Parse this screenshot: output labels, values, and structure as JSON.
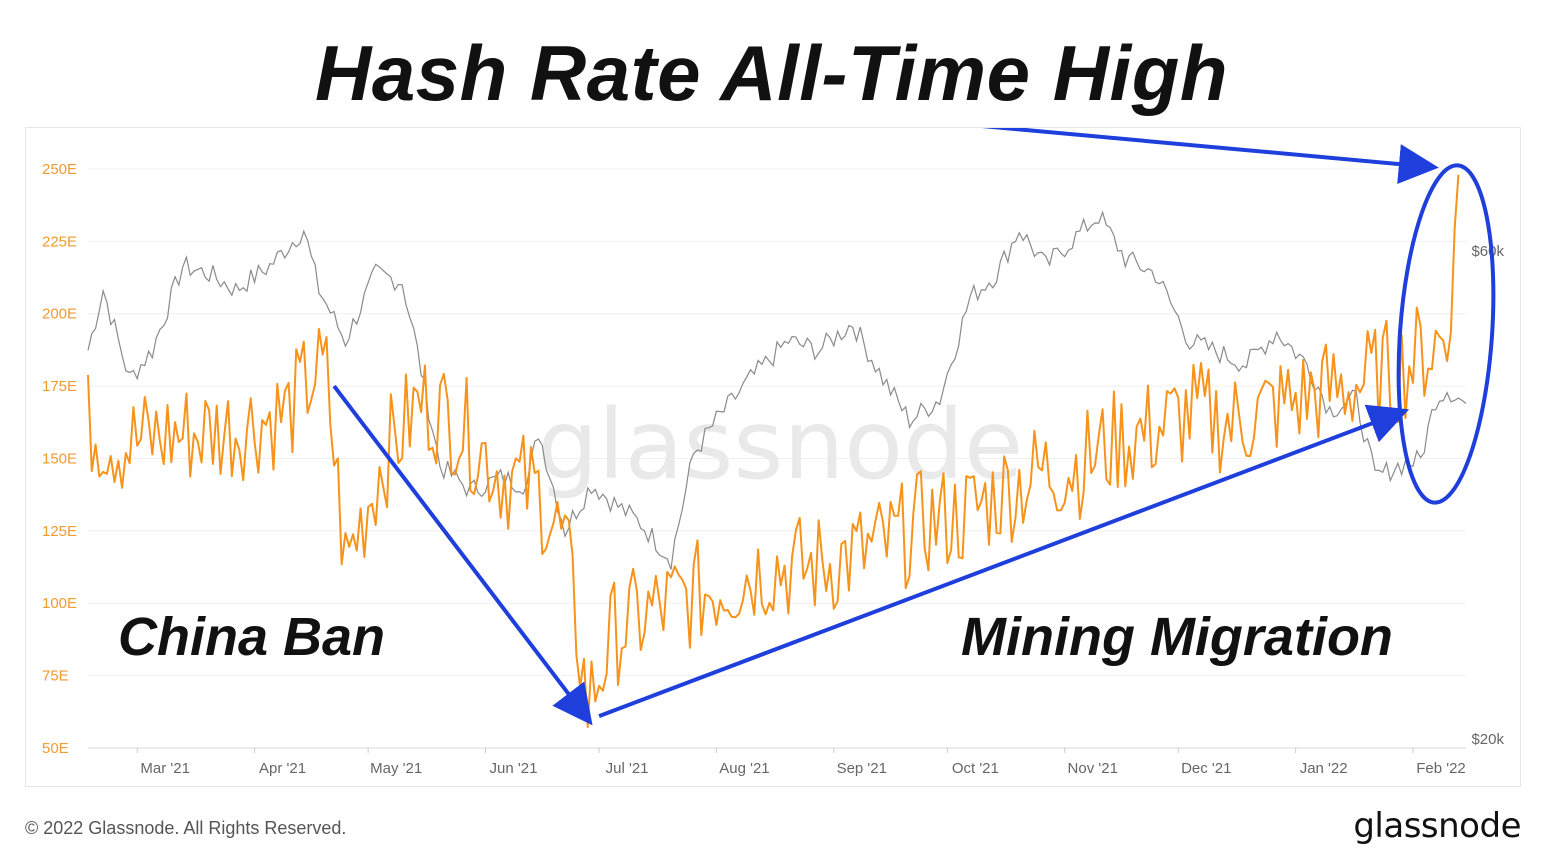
{
  "headline": "Hash Rate All-Time High",
  "footer": {
    "copyright": "© 2022 Glassnode. All Rights Reserved.",
    "brand": "glassnode"
  },
  "chart_data": {
    "type": "line",
    "watermark": "glassnode",
    "x_tick_labels": [
      "Mar '21",
      "Apr '21",
      "May '21",
      "Jun '21",
      "Jul '21",
      "Aug '21",
      "Sep '21",
      "Oct '21",
      "Nov '21",
      "Dec '21",
      "Jan '22",
      "Feb '22"
    ],
    "x_tick_dates": [
      "2021-03-01",
      "2021-04-01",
      "2021-05-01",
      "2021-06-01",
      "2021-07-01",
      "2021-08-01",
      "2021-09-01",
      "2021-10-01",
      "2021-11-01",
      "2021-12-01",
      "2022-01-01",
      "2022-02-01"
    ],
    "x_range": [
      "2021-02-16",
      "2022-02-15"
    ],
    "y_left": {
      "tick_labels": [
        "50E",
        "75E",
        "100E",
        "125E",
        "150E",
        "175E",
        "200E",
        "225E",
        "250E"
      ],
      "ticks": [
        50,
        75,
        100,
        125,
        150,
        175,
        200,
        225,
        250
      ],
      "range": [
        50,
        260
      ],
      "color": "#f09a30"
    },
    "y_right": {
      "tick_labels": [
        "$20k",
        "$60k"
      ],
      "ticks": [
        20000,
        60000
      ],
      "scale": "log",
      "range": [
        20000,
        60000
      ]
    },
    "grid": true,
    "series": [
      {
        "color": "#f7931a",
        "axis": "left",
        "dates": [
          "2021-02-16",
          "2021-02-25",
          "2021-03-10",
          "2021-03-25",
          "2021-04-10",
          "2021-04-17",
          "2021-04-20",
          "2021-04-25",
          "2021-05-05",
          "2021-05-15",
          "2021-05-25",
          "2021-06-05",
          "2021-06-15",
          "2021-06-22",
          "2021-06-28",
          "2021-07-05",
          "2021-07-15",
          "2021-07-25",
          "2021-08-05",
          "2021-08-15",
          "2021-08-25",
          "2021-09-05",
          "2021-09-15",
          "2021-09-25",
          "2021-10-05",
          "2021-10-15",
          "2021-10-25",
          "2021-11-05",
          "2021-11-15",
          "2021-11-25",
          "2021-12-05",
          "2021-12-15",
          "2021-12-25",
          "2022-01-05",
          "2022-01-15",
          "2022-01-22",
          "2022-01-30",
          "2022-02-05",
          "2022-02-10",
          "2022-02-13"
        ],
        "values": [
          162,
          155,
          158,
          160,
          166,
          180,
          178,
          113,
          150,
          170,
          162,
          145,
          138,
          120,
          65,
          90,
          97,
          102,
          108,
          113,
          112,
          116,
          120,
          128,
          130,
          138,
          145,
          148,
          156,
          160,
          166,
          162,
          167,
          172,
          175,
          178,
          182,
          188,
          192,
          248
        ]
      },
      {
        "color": "#8a8a8a",
        "axis": "right",
        "dates": [
          "2021-02-16",
          "2021-02-20",
          "2021-02-27",
          "2021-03-05",
          "2021-03-13",
          "2021-03-20",
          "2021-03-27",
          "2021-04-05",
          "2021-04-14",
          "2021-04-18",
          "2021-04-25",
          "2021-05-03",
          "2021-05-10",
          "2021-05-13",
          "2021-05-20",
          "2021-05-28",
          "2021-06-05",
          "2021-06-12",
          "2021-06-15",
          "2021-06-22",
          "2021-06-29",
          "2021-07-05",
          "2021-07-12",
          "2021-07-20",
          "2021-07-26",
          "2021-08-01",
          "2021-08-10",
          "2021-08-20",
          "2021-08-28",
          "2021-09-06",
          "2021-09-14",
          "2021-09-21",
          "2021-09-29",
          "2021-10-07",
          "2021-10-14",
          "2021-10-20",
          "2021-10-27",
          "2021-11-02",
          "2021-11-10",
          "2021-11-17",
          "2021-11-25",
          "2021-12-04",
          "2021-12-10",
          "2021-12-19",
          "2021-12-27",
          "2022-01-04",
          "2022-01-10",
          "2022-01-17",
          "2022-01-22",
          "2022-01-28",
          "2022-02-03",
          "2022-02-07",
          "2022-02-10",
          "2022-02-15"
        ],
        "values": [
          48000,
          55000,
          45000,
          48000,
          58000,
          57000,
          55000,
          58000,
          63000,
          55000,
          49000,
          57000,
          56000,
          50000,
          37000,
          35000,
          36000,
          35500,
          40000,
          32000,
          35500,
          34000,
          32500,
          30000,
          38000,
          41000,
          45000,
          49000,
          48000,
          51000,
          45000,
          41000,
          43000,
          54000,
          57000,
          63000,
          58000,
          61000,
          65000,
          59000,
          57000,
          49000,
          48000,
          46500,
          50000,
          46500,
          42000,
          43000,
          36000,
          37000,
          37500,
          43000,
          44000,
          42500
        ]
      }
    ],
    "annotations": [
      {
        "text": "China Ban",
        "arrow_from": [
          "2021-04-22",
          175
        ],
        "arrow_to": [
          "2021-06-28",
          60
        ]
      },
      {
        "text": "Mining Migration",
        "arrow_from": [
          "2021-07-01",
          61
        ],
        "arrow_to": [
          "2022-01-29",
          166
        ]
      },
      {
        "text": "",
        "arrow_to": [
          "2022-02-11",
          250
        ],
        "note": "ellipse around the all-time high"
      }
    ]
  }
}
